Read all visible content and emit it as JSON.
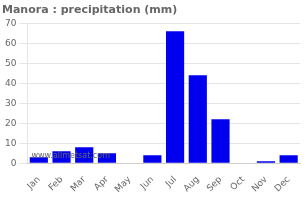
{
  "chart_data": {
    "type": "bar",
    "title": "Manora : precipitation (mm)",
    "categories": [
      "Jan",
      "Feb",
      "Mar",
      "Apr",
      "May",
      "Jun",
      "Jul",
      "Aug",
      "Sep",
      "Oct",
      "Nov",
      "Dec"
    ],
    "values": [
      3,
      6,
      8,
      5,
      0,
      4,
      66,
      44,
      22,
      0,
      1,
      4
    ],
    "color": "#0000EE",
    "ylim": [
      0,
      70
    ],
    "yticks": [
      0,
      10,
      20,
      30,
      40,
      50,
      60,
      70
    ],
    "grid": true,
    "annotations": [
      "www.allmetsat.com"
    ]
  }
}
